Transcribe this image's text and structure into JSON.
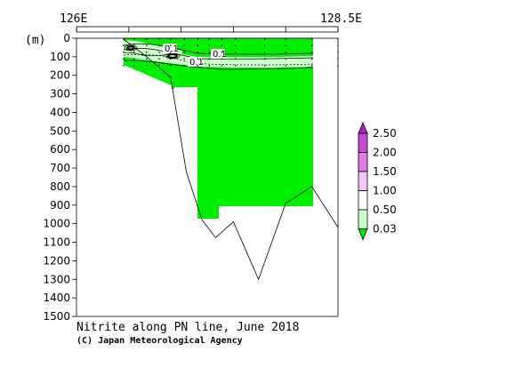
{
  "chart_data": {
    "type": "heatmap",
    "title": "Nitrite along PN line, June 2018",
    "subtitle": "(C) Japan Meteorological Agency",
    "ylabel": "(m)",
    "x_labels": {
      "left": "126E",
      "right": "128.5E"
    },
    "ylim": [
      0,
      1500
    ],
    "y_ticks": [
      0,
      100,
      200,
      300,
      400,
      500,
      600,
      700,
      800,
      900,
      1000,
      1100,
      1200,
      1300,
      1400,
      1500
    ],
    "y_inverted": true,
    "x_range_deg": [
      126.0,
      128.5
    ],
    "colorbar": {
      "levels": [
        "0.03",
        "0.50",
        "1.00",
        "1.50",
        "2.00",
        "2.50"
      ],
      "colors": [
        "#00ee00",
        "#ccffcc",
        "#ffffff",
        "#f4c6f6",
        "#e27ae8",
        "#c94ad2",
        "#b020c0"
      ]
    },
    "contour_labels": [
      "0.1",
      "0.1",
      "0.1"
    ],
    "bottom_profile": [
      {
        "lon": 126.45,
        "depth": 5
      },
      {
        "lon": 126.67,
        "depth": 100
      },
      {
        "lon": 126.9,
        "depth": 210
      },
      {
        "lon": 127.05,
        "depth": 720
      },
      {
        "lon": 127.2,
        "depth": 980
      },
      {
        "lon": 127.33,
        "depth": 1075
      },
      {
        "lon": 127.5,
        "depth": 990
      },
      {
        "lon": 127.74,
        "depth": 1300
      },
      {
        "lon": 128.0,
        "depth": 890
      },
      {
        "lon": 128.25,
        "depth": 800
      },
      {
        "lon": 128.5,
        "depth": 1020
      }
    ],
    "stations_lon": [
      126.45,
      126.55,
      126.67,
      126.79,
      126.9,
      127.03,
      127.16,
      127.27,
      127.39,
      127.52,
      127.8,
      128.0,
      128.25,
      128.5
    ]
  }
}
